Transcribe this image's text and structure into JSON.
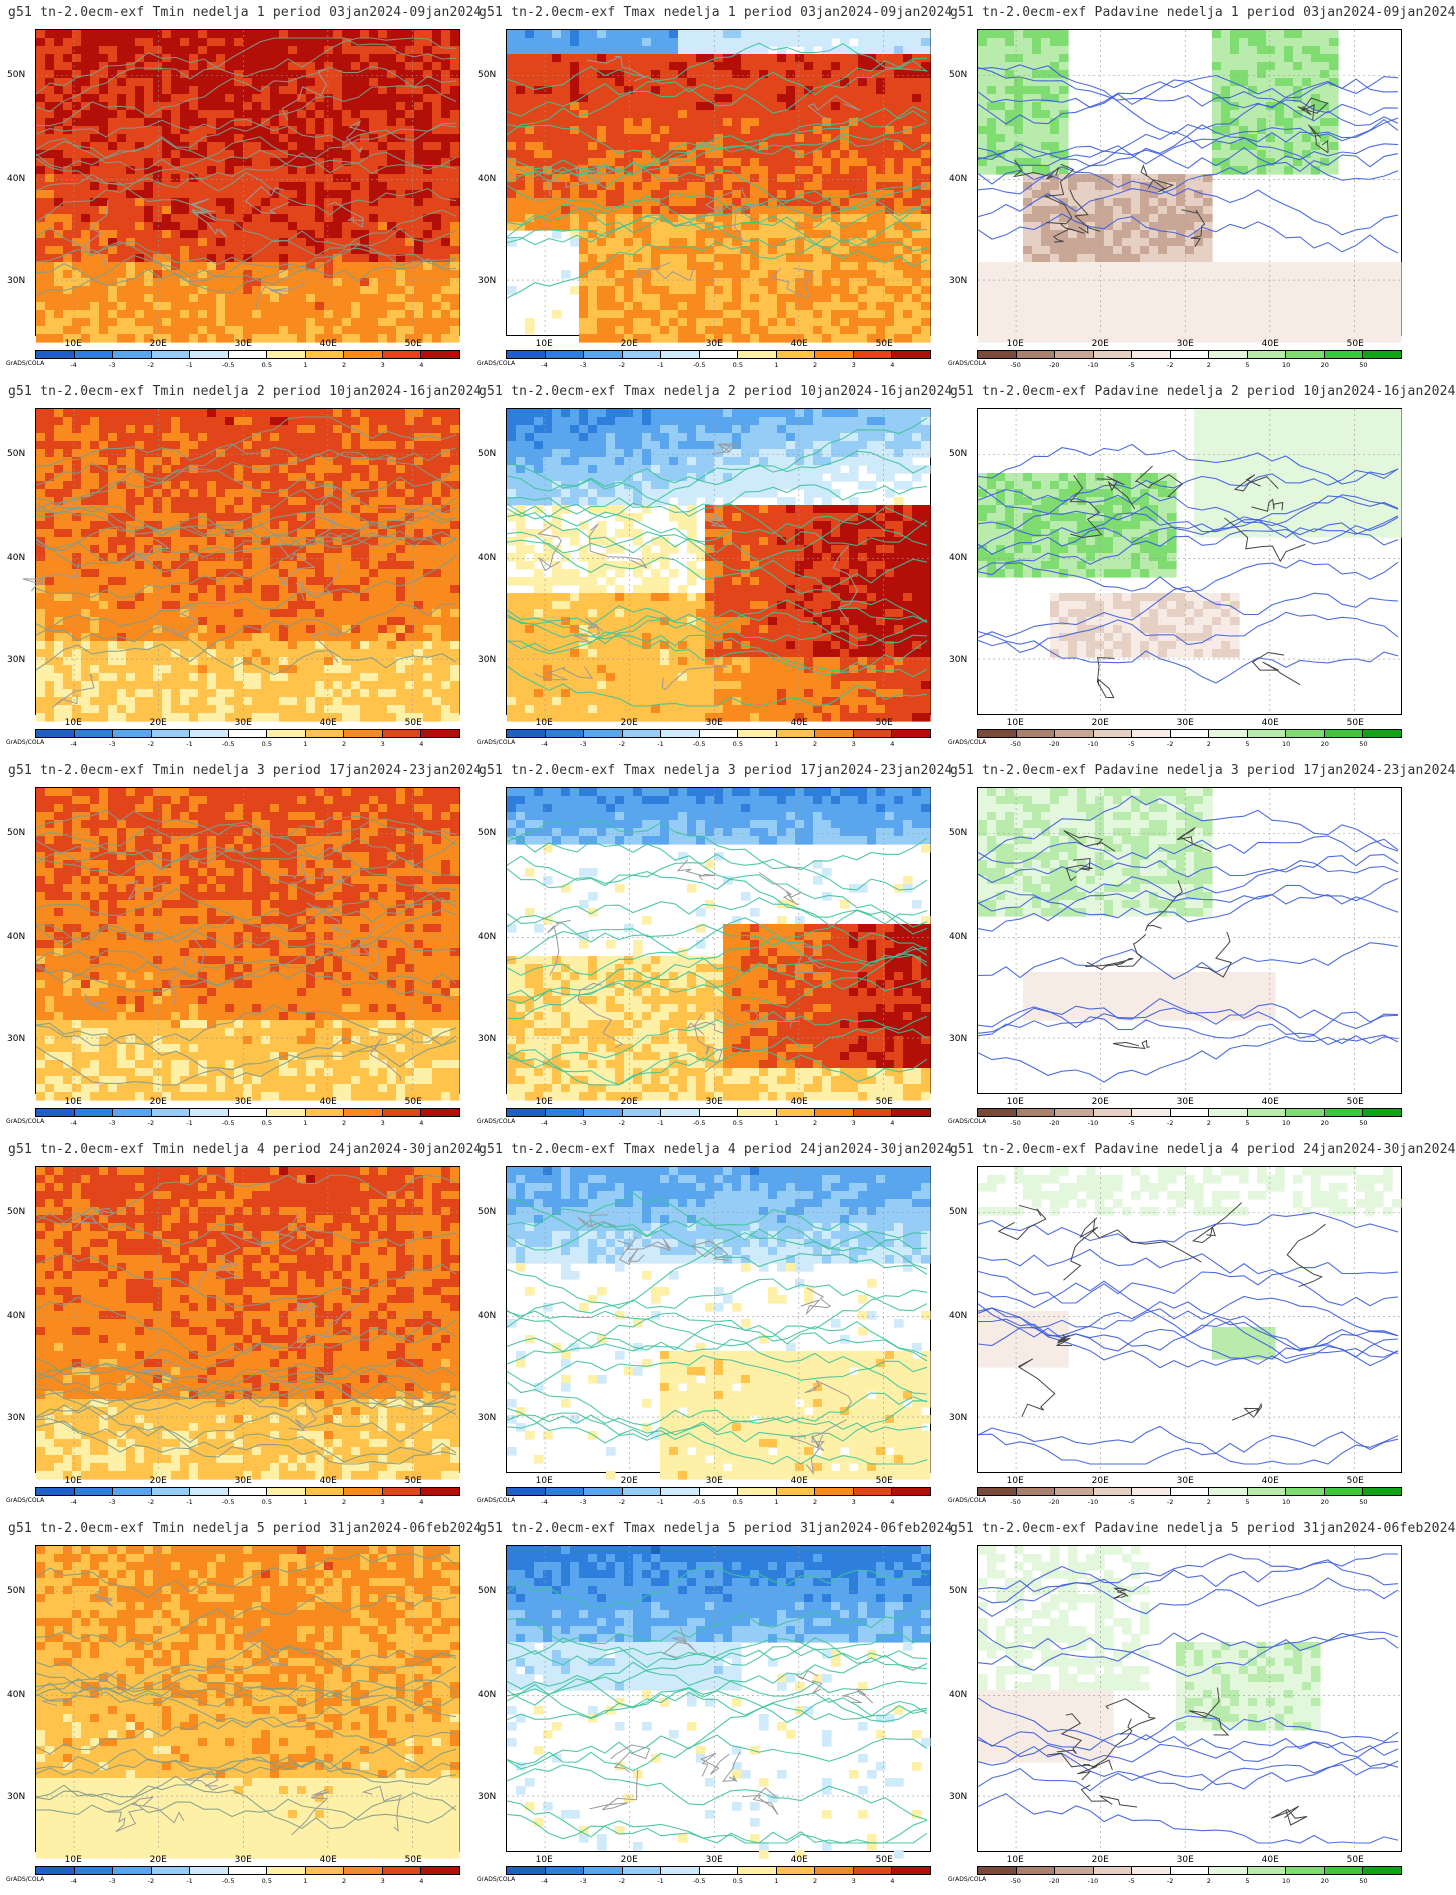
{
  "panels": [
    {
      "title": "g51 tn-2.0ecm-exf Tmin nedelja 1 period 03jan2024-09jan2024",
      "var": "Tmin",
      "week": 1
    },
    {
      "title": "g51 tn-2.0ecm-exf Tmax nedelja 1 period 03jan2024-09jan2024",
      "var": "Tmax",
      "week": 1
    },
    {
      "title": "g51 tn-2.0ecm-exf Padavine nedelja 1 period 03jan2024-09jan2024",
      "var": "Padavine",
      "week": 1
    },
    {
      "title": "g51 tn-2.0ecm-exf Tmin nedelja 2 period 10jan2024-16jan2024",
      "var": "Tmin",
      "week": 2
    },
    {
      "title": "g51 tn-2.0ecm-exf Tmax nedelja 2 period 10jan2024-16jan2024",
      "var": "Tmax",
      "week": 2
    },
    {
      "title": "g51 tn-2.0ecm-exf Padavine nedelja 2 period 10jan2024-16jan2024",
      "var": "Padavine",
      "week": 2
    },
    {
      "title": "g51 tn-2.0ecm-exf Tmin nedelja 3 period 17jan2024-23jan2024",
      "var": "Tmin",
      "week": 3
    },
    {
      "title": "g51 tn-2.0ecm-exf Tmax nedelja 3 period 17jan2024-23jan2024",
      "var": "Tmax",
      "week": 3
    },
    {
      "title": "g51 tn-2.0ecm-exf Padavine nedelja 3 period 17jan2024-23jan2024",
      "var": "Padavine",
      "week": 3
    },
    {
      "title": "g51 tn-2.0ecm-exf Tmin nedelja 4 period 24jan2024-30jan2024",
      "var": "Tmin",
      "week": 4
    },
    {
      "title": "g51 tn-2.0ecm-exf Tmax nedelja 4 period 24jan2024-30jan2024",
      "var": "Tmax",
      "week": 4
    },
    {
      "title": "g51 tn-2.0ecm-exf Padavine nedelja 4 period 24jan2024-30jan2024",
      "var": "Padavine",
      "week": 4
    },
    {
      "title": "g51 tn-2.0ecm-exf Tmin nedelja 5 period 31jan2024-06feb2024",
      "var": "Tmin",
      "week": 5
    },
    {
      "title": "g51 tn-2.0ecm-exf Tmax nedelja 5 period 31jan2024-06feb2024",
      "var": "Tmax",
      "week": 5
    },
    {
      "title": "g51 tn-2.0ecm-exf Padavine nedelja 5 period 31jan2024-06feb2024",
      "var": "Padavine",
      "week": 5
    }
  ],
  "axes": {
    "lat_labels": [
      "50N",
      "40N",
      "30N"
    ],
    "lon_labels": [
      "10E",
      "20E",
      "30E",
      "40E",
      "50E"
    ]
  },
  "colorbars": {
    "temp": {
      "ticks": [
        "-4",
        "-3",
        "-2",
        "-1",
        "-0.5",
        "0.5",
        "1",
        "2",
        "3",
        "4"
      ],
      "colors": [
        "#1f5fc8",
        "#2e7fdc",
        "#5aa6ee",
        "#96cdf6",
        "#cfeafb",
        "#ffffff",
        "#fff0a8",
        "#ffc24a",
        "#f88a1e",
        "#e2451a",
        "#b30f08"
      ]
    },
    "precip": {
      "ticks": [
        "-50",
        "-20",
        "-10",
        "-5",
        "-2",
        "2",
        "5",
        "10",
        "20",
        "50"
      ],
      "colors": [
        "#7a4a38",
        "#a8806c",
        "#c9a797",
        "#e6cfc3",
        "#f7ece5",
        "#ffffff",
        "#e3f7dc",
        "#b9ecac",
        "#7fdc70",
        "#3fc63a",
        "#12a318"
      ]
    },
    "brand": "GrADS/COLA"
  }
}
